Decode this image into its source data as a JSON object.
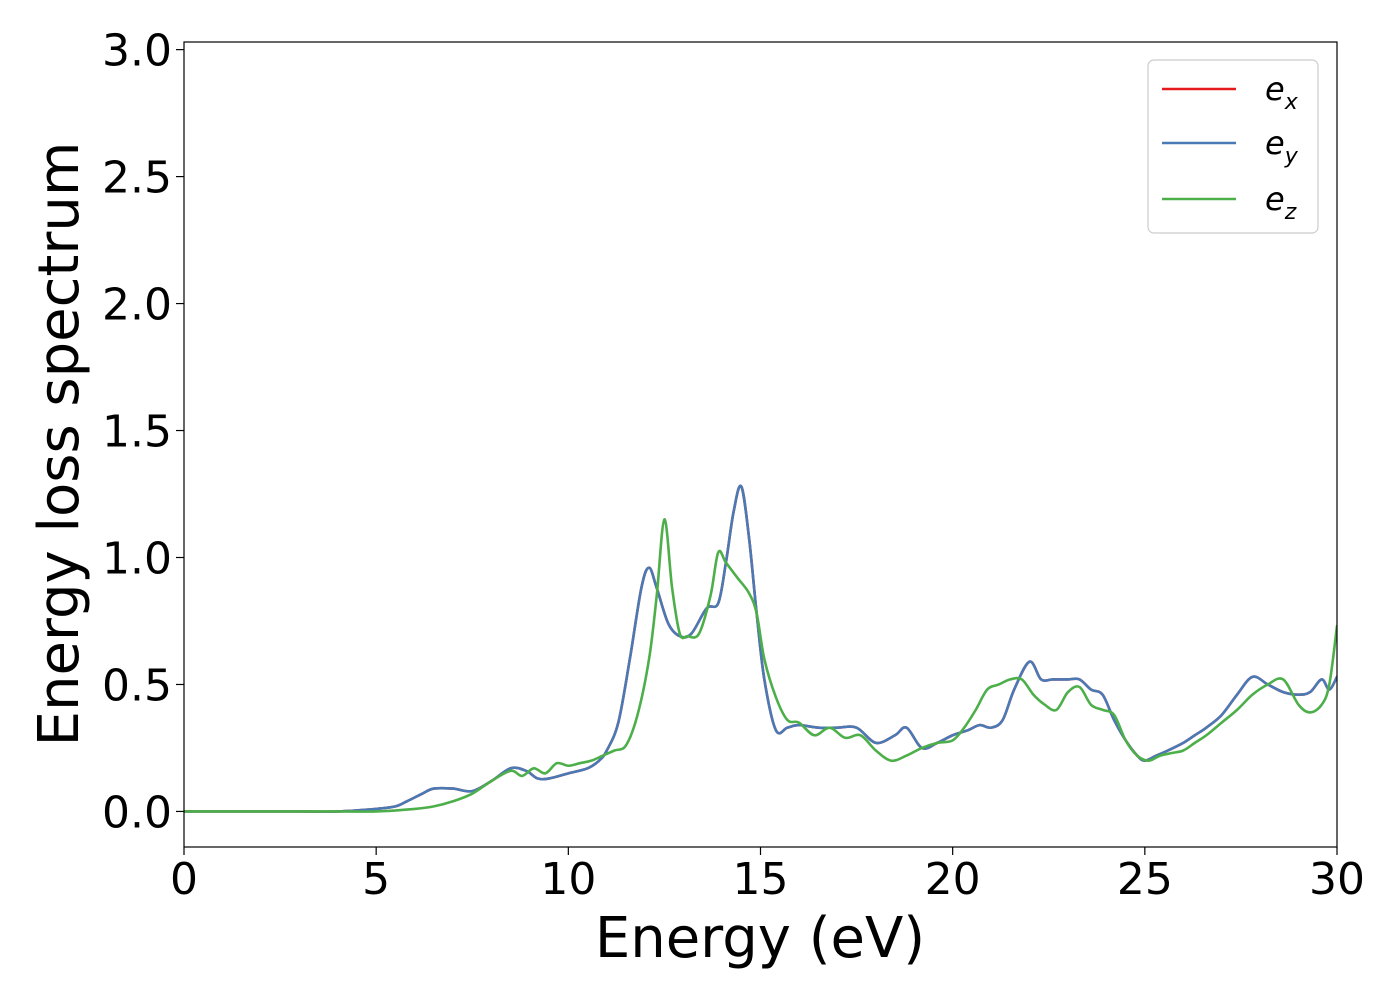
{
  "chart_data": {
    "type": "line",
    "title": "",
    "xlabel": "Energy (eV)",
    "ylabel": "Energy loss spectrum",
    "xlim": [
      0,
      30
    ],
    "ylim": [
      -0.14,
      3.03
    ],
    "xticks": [
      0,
      5,
      10,
      15,
      20,
      25,
      30
    ],
    "xtick_labels": [
      "0",
      "5",
      "10",
      "15",
      "20",
      "25",
      "30"
    ],
    "yticks": [
      0.0,
      0.5,
      1.0,
      1.5,
      2.0,
      2.5,
      3.0
    ],
    "ytick_labels": [
      "0.0",
      "0.5",
      "1.0",
      "1.5",
      "2.0",
      "2.5",
      "3.0"
    ],
    "grid": false,
    "legend_position": "top-right",
    "series": [
      {
        "name": "e_x",
        "legend_base": "e",
        "legend_sub": "x",
        "color": "#e41a1c",
        "x": [
          0,
          1,
          2,
          3,
          4,
          5,
          5.5,
          5.8,
          6.2,
          6.5,
          7,
          7.5,
          8,
          8.5,
          8.9,
          9.2,
          9.5,
          10,
          10.5,
          10.8,
          11,
          11.3,
          11.6,
          11.9,
          12.1,
          12.3,
          12.6,
          12.9,
          13.2,
          13.6,
          13.9,
          14.1,
          14.3,
          14.5,
          14.7,
          14.9,
          15.1,
          15.4,
          15.7,
          16,
          16.5,
          17,
          17.5,
          18,
          18.5,
          18.8,
          19.2,
          19.6,
          20,
          20.4,
          20.7,
          21,
          21.3,
          21.6,
          22,
          22.3,
          22.6,
          23,
          23.3,
          23.6,
          23.9,
          24.2,
          24.5,
          24.8,
          25,
          25.3,
          25.6,
          26,
          26.3,
          26.6,
          27,
          27.4,
          27.8,
          28.2,
          28.6,
          29,
          29.3,
          29.6,
          29.8,
          30
        ],
        "y": [
          0,
          0,
          0,
          0,
          0,
          0.01,
          0.02,
          0.04,
          0.07,
          0.09,
          0.09,
          0.08,
          0.12,
          0.17,
          0.16,
          0.13,
          0.13,
          0.15,
          0.17,
          0.2,
          0.24,
          0.35,
          0.6,
          0.88,
          0.96,
          0.88,
          0.74,
          0.69,
          0.7,
          0.8,
          0.82,
          0.98,
          1.18,
          1.28,
          1.08,
          0.78,
          0.52,
          0.32,
          0.33,
          0.34,
          0.33,
          0.33,
          0.33,
          0.27,
          0.3,
          0.33,
          0.25,
          0.27,
          0.3,
          0.32,
          0.34,
          0.33,
          0.36,
          0.48,
          0.59,
          0.52,
          0.52,
          0.52,
          0.52,
          0.48,
          0.46,
          0.36,
          0.28,
          0.22,
          0.2,
          0.22,
          0.24,
          0.27,
          0.3,
          0.33,
          0.38,
          0.46,
          0.53,
          0.5,
          0.47,
          0.46,
          0.47,
          0.52,
          0.48,
          0.53
        ]
      },
      {
        "name": "e_y",
        "legend_base": "e",
        "legend_sub": "y",
        "color": "#4a7ab5",
        "x": [
          0,
          1,
          2,
          3,
          4,
          5,
          5.5,
          5.8,
          6.2,
          6.5,
          7,
          7.5,
          8,
          8.5,
          8.9,
          9.2,
          9.5,
          10,
          10.5,
          10.8,
          11,
          11.3,
          11.6,
          11.9,
          12.1,
          12.3,
          12.6,
          12.9,
          13.2,
          13.6,
          13.9,
          14.1,
          14.3,
          14.5,
          14.7,
          14.9,
          15.1,
          15.4,
          15.7,
          16,
          16.5,
          17,
          17.5,
          18,
          18.5,
          18.8,
          19.2,
          19.6,
          20,
          20.4,
          20.7,
          21,
          21.3,
          21.6,
          22,
          22.3,
          22.6,
          23,
          23.3,
          23.6,
          23.9,
          24.2,
          24.5,
          24.8,
          25,
          25.3,
          25.6,
          26,
          26.3,
          26.6,
          27,
          27.4,
          27.8,
          28.2,
          28.6,
          29,
          29.3,
          29.6,
          29.8,
          30
        ],
        "y": [
          0,
          0,
          0,
          0,
          0,
          0.01,
          0.02,
          0.04,
          0.07,
          0.09,
          0.09,
          0.08,
          0.12,
          0.17,
          0.16,
          0.13,
          0.13,
          0.15,
          0.17,
          0.2,
          0.24,
          0.35,
          0.6,
          0.88,
          0.96,
          0.88,
          0.74,
          0.69,
          0.7,
          0.8,
          0.82,
          0.98,
          1.18,
          1.28,
          1.08,
          0.78,
          0.52,
          0.32,
          0.33,
          0.34,
          0.33,
          0.33,
          0.33,
          0.27,
          0.3,
          0.33,
          0.25,
          0.27,
          0.3,
          0.32,
          0.34,
          0.33,
          0.36,
          0.48,
          0.59,
          0.52,
          0.52,
          0.52,
          0.52,
          0.48,
          0.46,
          0.36,
          0.28,
          0.22,
          0.2,
          0.22,
          0.24,
          0.27,
          0.3,
          0.33,
          0.38,
          0.46,
          0.53,
          0.5,
          0.47,
          0.46,
          0.47,
          0.52,
          0.48,
          0.53
        ]
      },
      {
        "name": "e_z",
        "legend_base": "e",
        "legend_sub": "z",
        "color": "#4daf4a",
        "x": [
          0,
          1,
          2,
          3,
          4,
          5,
          6,
          6.5,
          7,
          7.5,
          8,
          8.5,
          8.8,
          9.1,
          9.4,
          9.7,
          10,
          10.3,
          10.6,
          10.9,
          11.2,
          11.5,
          11.8,
          12.1,
          12.3,
          12.5,
          12.7,
          12.9,
          13.1,
          13.4,
          13.7,
          13.9,
          14.1,
          14.4,
          14.7,
          14.9,
          15.1,
          15.4,
          15.7,
          16,
          16.4,
          16.8,
          17.2,
          17.6,
          18,
          18.4,
          18.8,
          19.2,
          19.6,
          20,
          20.3,
          20.6,
          20.9,
          21.2,
          21.5,
          21.8,
          22.1,
          22.4,
          22.7,
          23,
          23.3,
          23.6,
          23.9,
          24.2,
          24.5,
          24.8,
          25.1,
          25.4,
          25.7,
          26,
          26.3,
          26.6,
          27,
          27.4,
          27.8,
          28.2,
          28.6,
          29,
          29.3,
          29.6,
          29.8,
          30
        ],
        "y": [
          0,
          0,
          0,
          0,
          0,
          0,
          0.01,
          0.02,
          0.04,
          0.07,
          0.12,
          0.16,
          0.14,
          0.17,
          0.15,
          0.19,
          0.18,
          0.19,
          0.2,
          0.22,
          0.24,
          0.26,
          0.38,
          0.6,
          0.85,
          1.15,
          0.88,
          0.7,
          0.69,
          0.7,
          0.85,
          1.02,
          0.98,
          0.92,
          0.86,
          0.78,
          0.6,
          0.45,
          0.36,
          0.35,
          0.3,
          0.33,
          0.29,
          0.3,
          0.24,
          0.2,
          0.22,
          0.25,
          0.27,
          0.28,
          0.33,
          0.4,
          0.48,
          0.5,
          0.52,
          0.52,
          0.46,
          0.42,
          0.4,
          0.47,
          0.49,
          0.42,
          0.4,
          0.38,
          0.28,
          0.22,
          0.2,
          0.22,
          0.23,
          0.24,
          0.27,
          0.3,
          0.35,
          0.4,
          0.46,
          0.5,
          0.52,
          0.42,
          0.39,
          0.42,
          0.5,
          0.73
        ]
      }
    ]
  }
}
